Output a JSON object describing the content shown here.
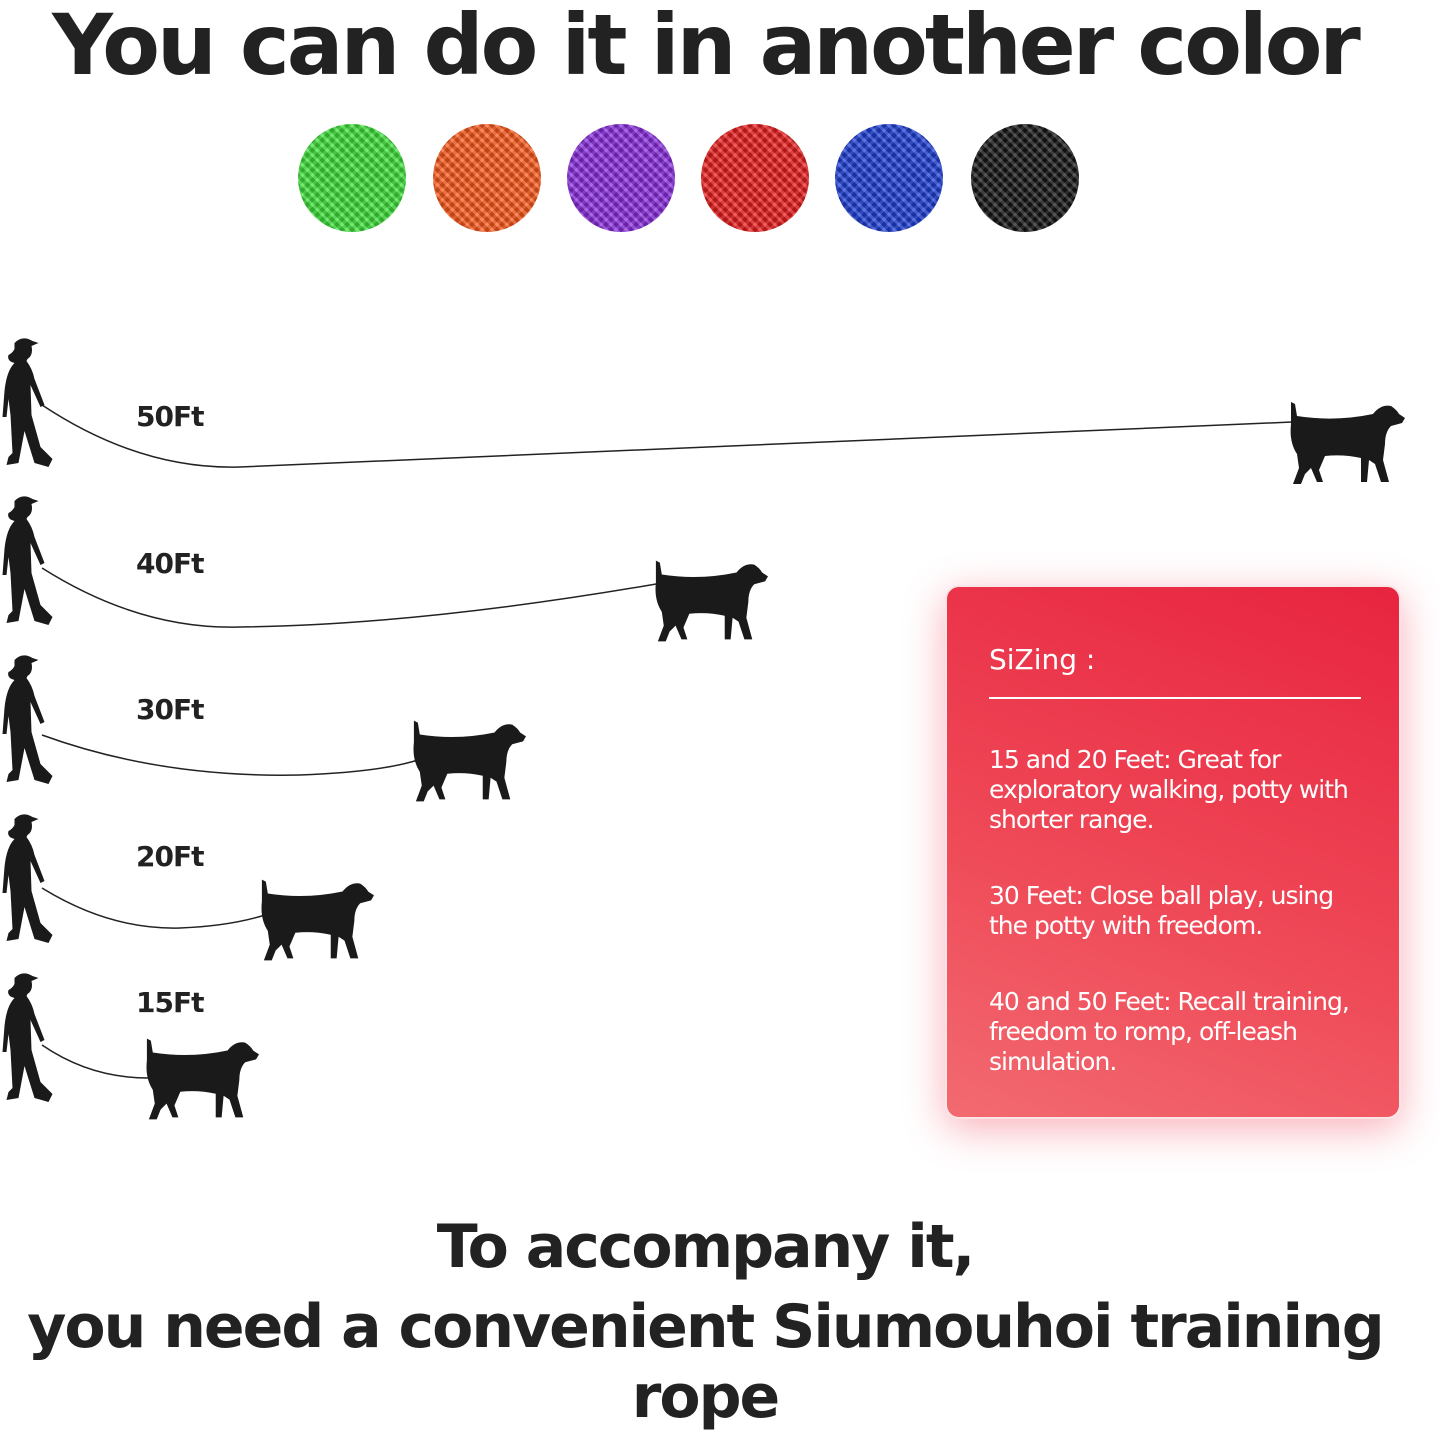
{
  "header": {
    "title": "You can do it in another color"
  },
  "colors": [
    {
      "name": "green",
      "hex": "#3fe33a"
    },
    {
      "name": "orange",
      "hex": "#ff5b1c"
    },
    {
      "name": "purple",
      "hex": "#8b2ee0"
    },
    {
      "name": "red",
      "hex": "#ec1d1d"
    },
    {
      "name": "blue",
      "hex": "#1f40d8"
    },
    {
      "name": "black",
      "hex": "#141414"
    }
  ],
  "lengths": [
    "50Ft",
    "40Ft",
    "30Ft",
    "20Ft",
    "15Ft"
  ],
  "sizing": {
    "title": "SiZing :",
    "items": [
      "15 and 20 Feet: Great for exploratory walking, potty with shorter range.",
      "30 Feet: Close ball play, using the potty with freedom.",
      "40 and 50 Feet: Recall training, freedom to romp, off-leash simulation."
    ],
    "card_color": "#e8243f"
  },
  "footer": {
    "line1": "To accompany it,",
    "line2": "you need a convenient Siumouhoi training rope"
  }
}
